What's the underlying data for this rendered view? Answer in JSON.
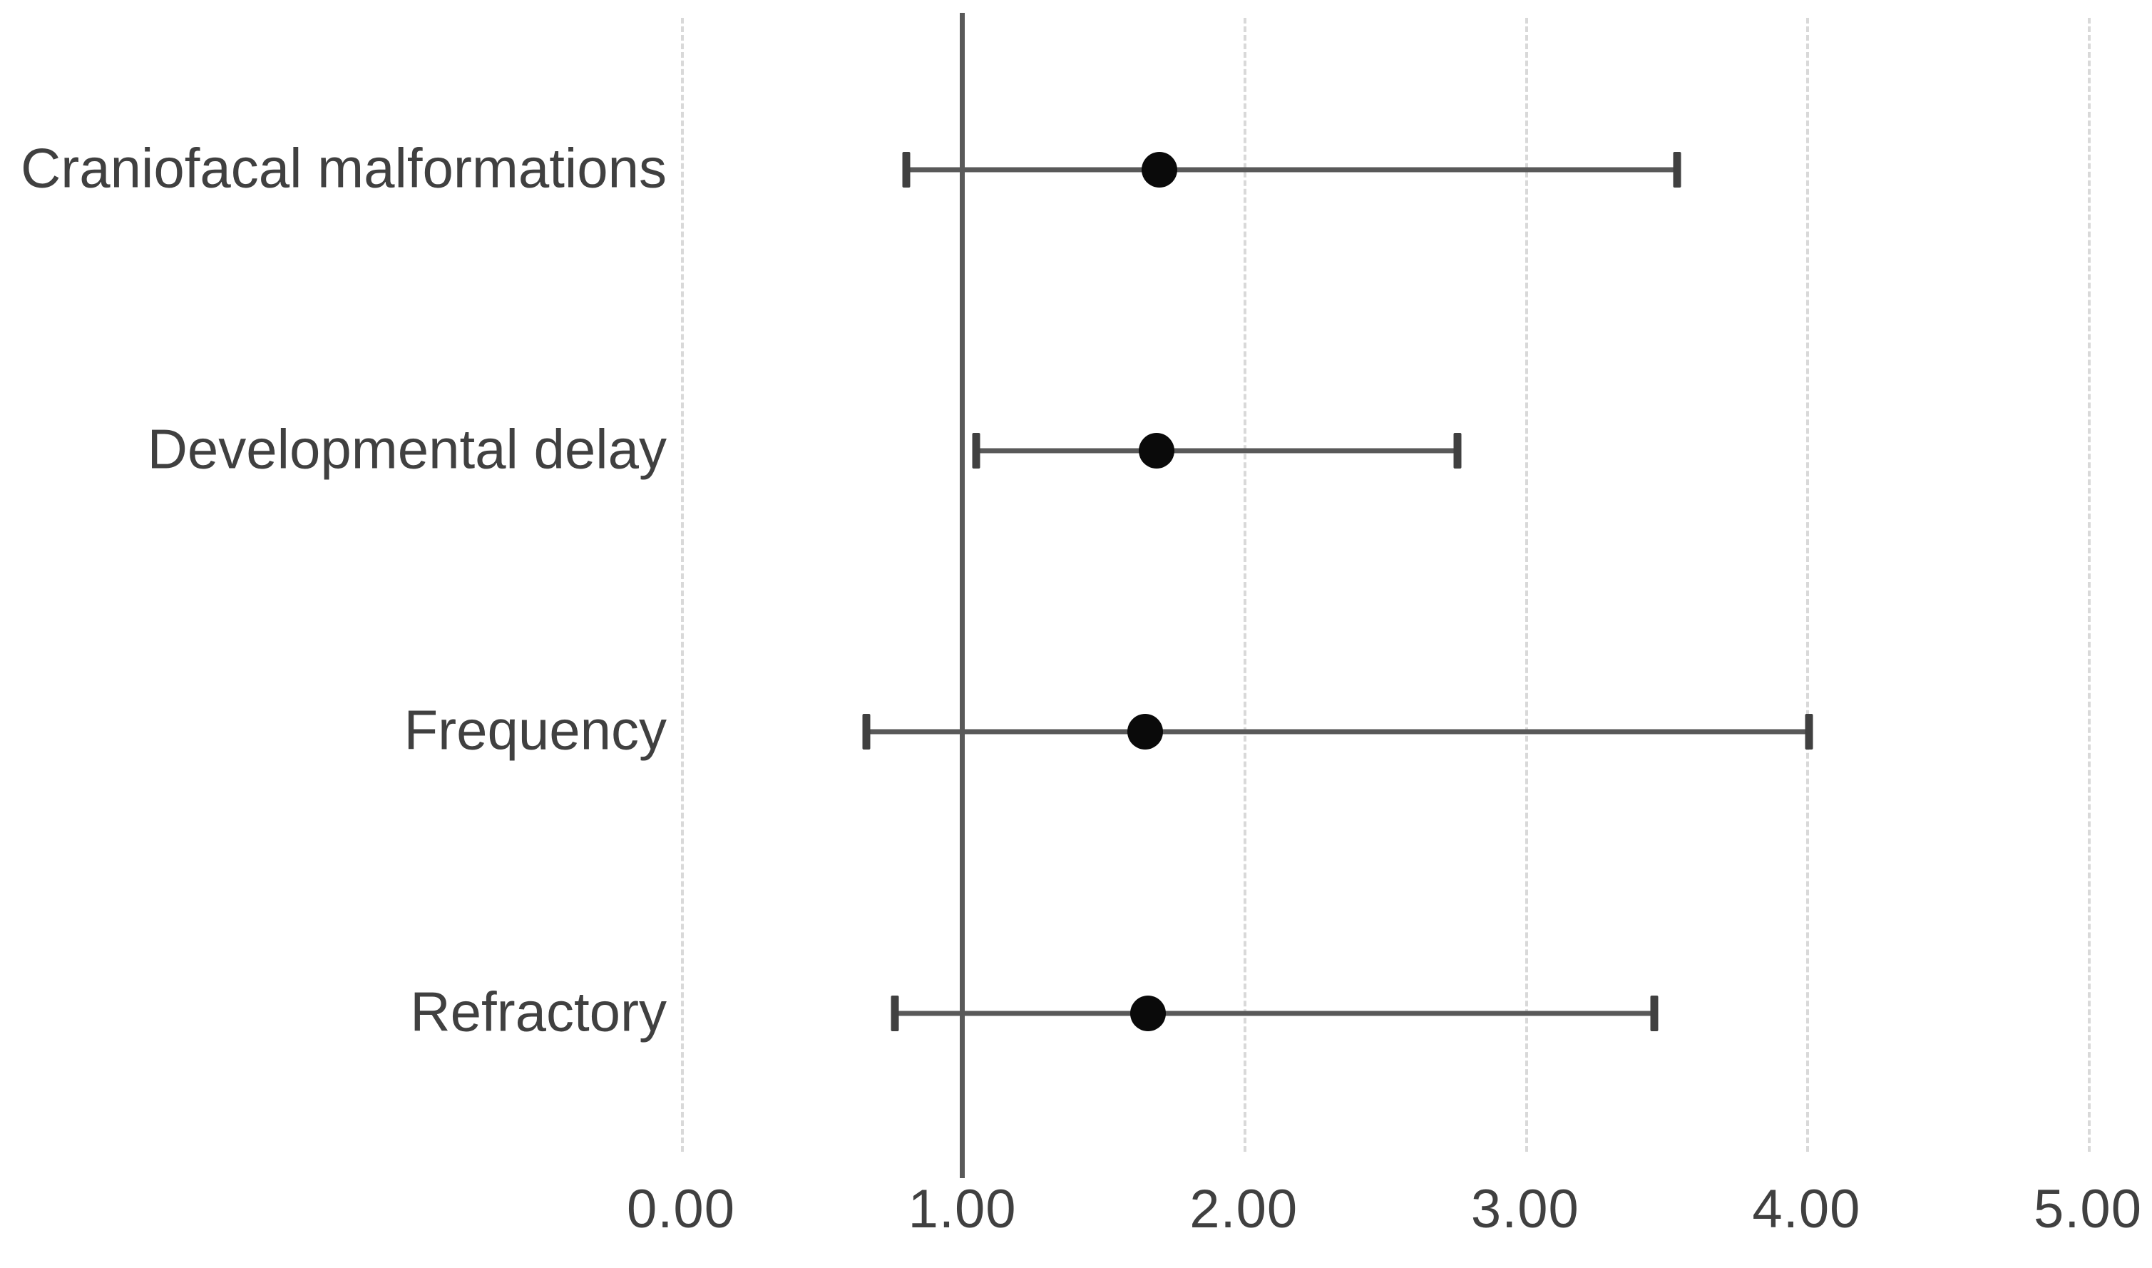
{
  "chart_data": {
    "type": "scatter",
    "subtype": "forest-plot",
    "title": "",
    "xlabel": "",
    "ylabel": "",
    "xlim": [
      0,
      5
    ],
    "x_tick_labels": [
      "0.00",
      "1.00",
      "2.00",
      "3.00",
      "4.00",
      "5.00"
    ],
    "x_tick_values": [
      0,
      1,
      2,
      3,
      4,
      5
    ],
    "reference_line": 1.0,
    "grid": "vertical-dashed",
    "legend": "none",
    "categories": [
      "Craniofacal malformations",
      "Developmental delay",
      "Frequency",
      "Refractory"
    ],
    "series": [
      {
        "name": "point-estimate-with-ci",
        "points": [
          {
            "label": "Craniofacal malformations",
            "value": 1.7,
            "ci_low": 0.8,
            "ci_high": 3.54
          },
          {
            "label": "Developmental delay",
            "value": 1.69,
            "ci_low": 1.05,
            "ci_high": 2.76
          },
          {
            "label": "Frequency",
            "value": 1.65,
            "ci_low": 0.66,
            "ci_high": 4.01
          },
          {
            "label": "Refractory",
            "value": 1.66,
            "ci_low": 0.76,
            "ci_high": 3.46
          }
        ]
      }
    ],
    "colors": {
      "marker": "#0a0a0a",
      "ci_line": "#595959",
      "ci_cap": "#404040",
      "gridline": "#d9d9d9",
      "reference_line": "#595959",
      "text": "#404040",
      "background": "#ffffff"
    }
  }
}
